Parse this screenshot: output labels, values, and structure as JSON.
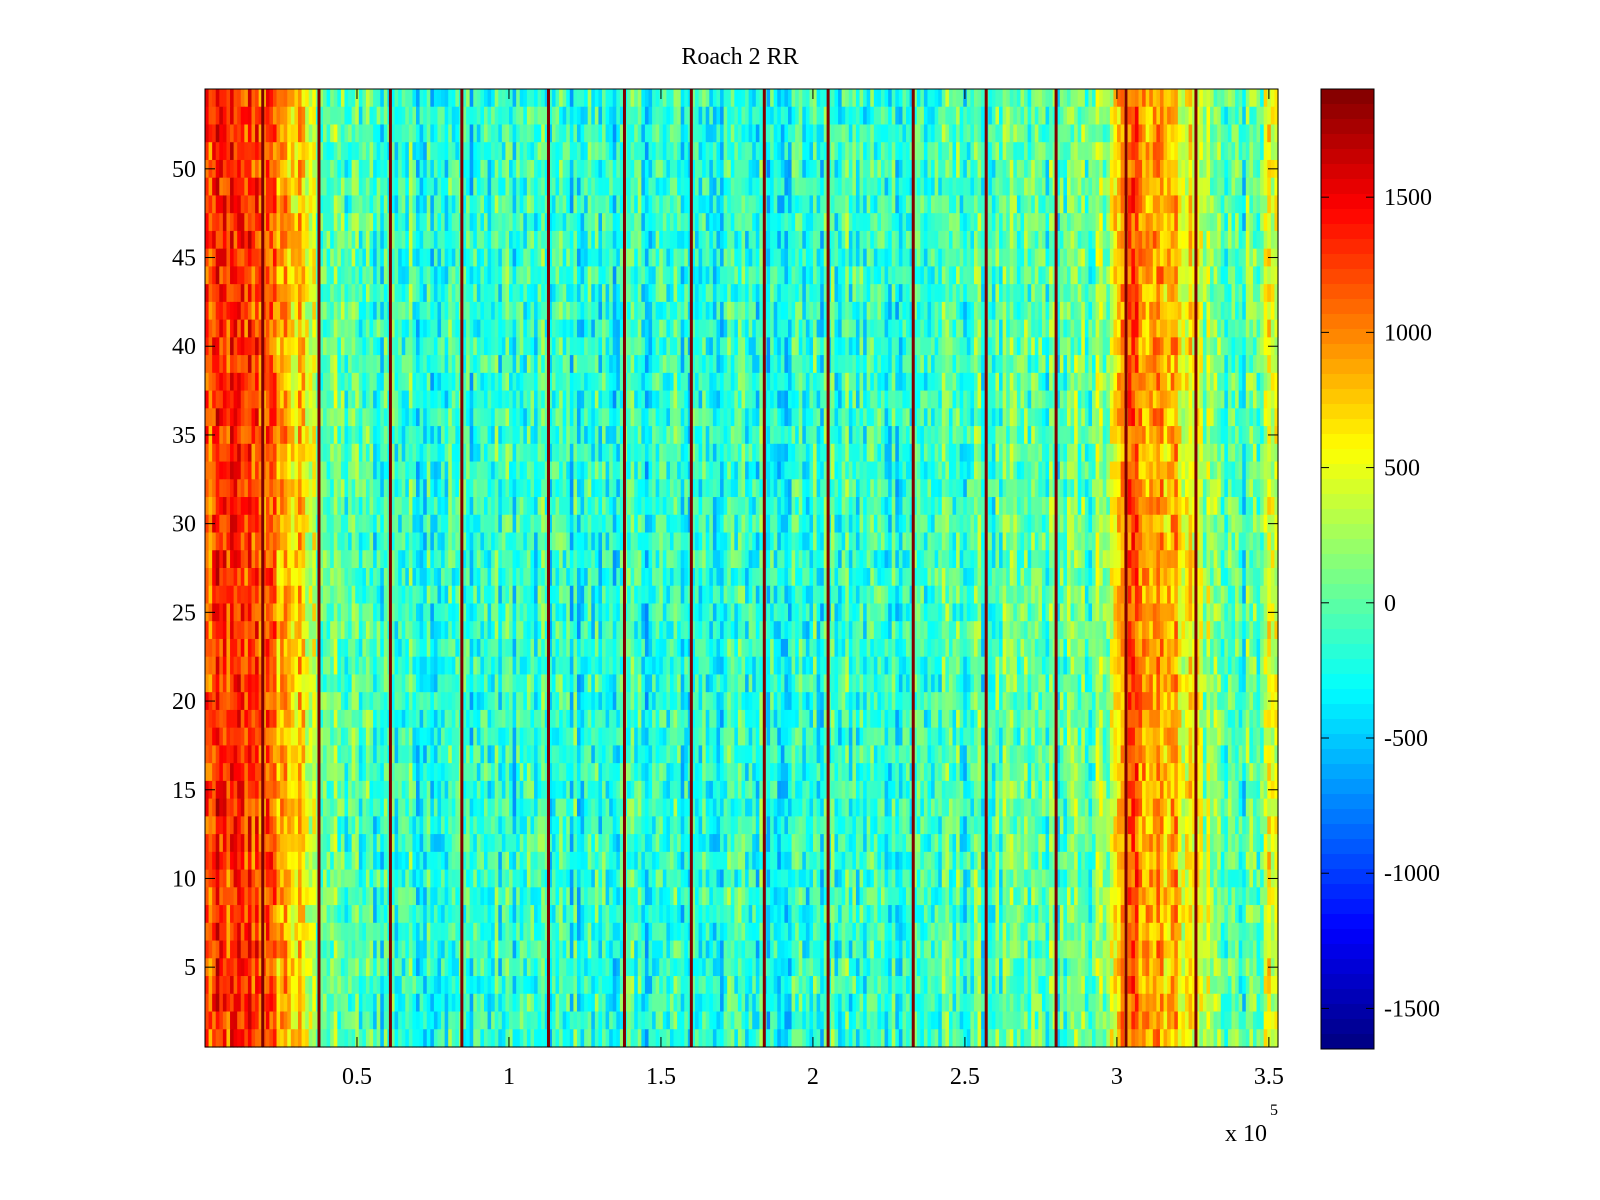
{
  "chart_data": {
    "type": "heatmap",
    "title": "Roach 2 RR",
    "xlabel": "",
    "ylabel": "",
    "x_exponent_label": "x 10",
    "x_exponent": "5",
    "xlim": [
      0,
      353000
    ],
    "ylim": [
      0.5,
      54.5
    ],
    "x_ticks": [
      {
        "value": 50000,
        "label": "0.5"
      },
      {
        "value": 100000,
        "label": "1"
      },
      {
        "value": 150000,
        "label": "1.5"
      },
      {
        "value": 200000,
        "label": "2"
      },
      {
        "value": 250000,
        "label": "2.5"
      },
      {
        "value": 300000,
        "label": "3"
      },
      {
        "value": 350000,
        "label": "3.5"
      }
    ],
    "y_ticks": [
      {
        "value": 5,
        "label": "5"
      },
      {
        "value": 10,
        "label": "10"
      },
      {
        "value": 15,
        "label": "15"
      },
      {
        "value": 20,
        "label": "20"
      },
      {
        "value": 25,
        "label": "25"
      },
      {
        "value": 30,
        "label": "30"
      },
      {
        "value": 35,
        "label": "35"
      },
      {
        "value": 40,
        "label": "40"
      },
      {
        "value": 45,
        "label": "45"
      },
      {
        "value": 50,
        "label": "50"
      }
    ],
    "rows": 54,
    "colormap": "jet",
    "clim": [
      -1650,
      1900
    ],
    "colorbar": {
      "location": "right",
      "ticks": [
        {
          "value": 1500,
          "label": "1500"
        },
        {
          "value": 1000,
          "label": "1000"
        },
        {
          "value": 500,
          "label": "500"
        },
        {
          "value": 0,
          "label": "0"
        },
        {
          "value": -500,
          "label": "-500"
        },
        {
          "value": -1000,
          "label": "-1000"
        },
        {
          "value": -1500,
          "label": "-1500"
        }
      ]
    },
    "column_profile": [
      {
        "x": 0,
        "value": 1150
      },
      {
        "x": 7000,
        "value": 1250
      },
      {
        "x": 12000,
        "value": 1200
      },
      {
        "x": 17000,
        "value": 1300
      },
      {
        "x": 21000,
        "value": 1050
      },
      {
        "x": 25000,
        "value": 900
      },
      {
        "x": 30000,
        "value": 700
      },
      {
        "x": 34000,
        "value": 450
      },
      {
        "x": 38000,
        "value": 150
      },
      {
        "x": 42000,
        "value": 0
      },
      {
        "x": 50000,
        "value": -100
      },
      {
        "x": 80000,
        "value": -150
      },
      {
        "x": 130000,
        "value": -200
      },
      {
        "x": 180000,
        "value": -180
      },
      {
        "x": 230000,
        "value": -140
      },
      {
        "x": 270000,
        "value": -60
      },
      {
        "x": 290000,
        "value": 0
      },
      {
        "x": 298000,
        "value": 250
      },
      {
        "x": 302000,
        "value": 900
      },
      {
        "x": 307000,
        "value": 1100
      },
      {
        "x": 313000,
        "value": 1000
      },
      {
        "x": 320000,
        "value": 750
      },
      {
        "x": 326000,
        "value": 450
      },
      {
        "x": 332000,
        "value": 150
      },
      {
        "x": 340000,
        "value": -100
      },
      {
        "x": 346000,
        "value": -50
      },
      {
        "x": 349000,
        "value": 350
      },
      {
        "x": 353000,
        "value": 500
      }
    ],
    "high_stripes": [
      {
        "x": 19000,
        "value": 1900
      },
      {
        "x": 37500,
        "value": 1900
      },
      {
        "x": 61000,
        "value": 1900
      },
      {
        "x": 84500,
        "value": 1900
      },
      {
        "x": 113000,
        "value": 1900
      },
      {
        "x": 138000,
        "value": 1900
      },
      {
        "x": 160000,
        "value": 1900
      },
      {
        "x": 184000,
        "value": 1900
      },
      {
        "x": 205000,
        "value": 1900
      },
      {
        "x": 233000,
        "value": 1900
      },
      {
        "x": 257000,
        "value": 1900
      },
      {
        "x": 280000,
        "value": 1900
      },
      {
        "x": 303000,
        "value": 1900
      },
      {
        "x": 326000,
        "value": 1900
      }
    ]
  }
}
